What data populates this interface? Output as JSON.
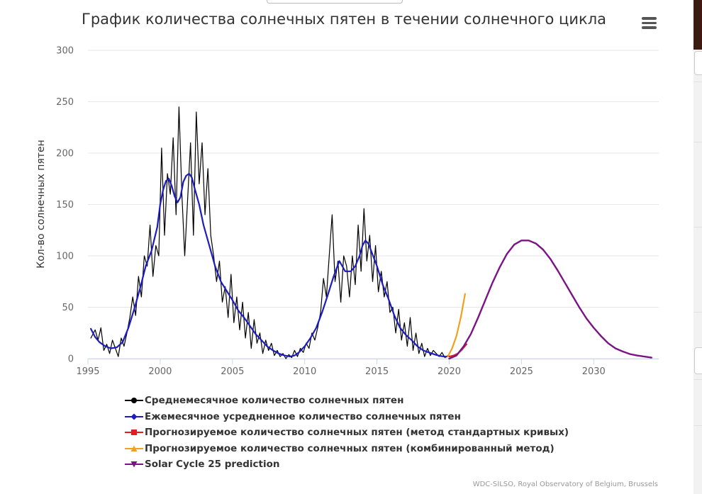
{
  "chart_data": {
    "type": "line",
    "title": "График количества солнечных пятен в течении солнечного цикла",
    "xlabel": "",
    "ylabel": "Кол-во солнечных пятен",
    "xlim": [
      1995,
      2034.5
    ],
    "ylim": [
      0,
      300
    ],
    "x_ticks": [
      1995,
      2000,
      2005,
      2010,
      2015,
      2020,
      2025,
      2030
    ],
    "y_ticks": [
      0,
      50,
      100,
      150,
      200,
      250,
      300
    ],
    "grid": "horizontal",
    "legend_position": "bottom-left",
    "series": [
      {
        "name": "Среднемесячное количество солнечных пятен",
        "color": "#000000",
        "marker": "circle",
        "points": [
          [
            1995.2,
            20
          ],
          [
            1995.5,
            28
          ],
          [
            1995.7,
            18
          ],
          [
            1995.9,
            30
          ],
          [
            1996.1,
            8
          ],
          [
            1996.3,
            14
          ],
          [
            1996.5,
            5
          ],
          [
            1996.7,
            18
          ],
          [
            1996.9,
            10
          ],
          [
            1997.1,
            2
          ],
          [
            1997.3,
            20
          ],
          [
            1997.5,
            12
          ],
          [
            1997.7,
            25
          ],
          [
            1997.9,
            40
          ],
          [
            1998.1,
            60
          ],
          [
            1998.3,
            42
          ],
          [
            1998.5,
            80
          ],
          [
            1998.7,
            60
          ],
          [
            1998.9,
            100
          ],
          [
            1999.1,
            90
          ],
          [
            1999.3,
            130
          ],
          [
            1999.5,
            80
          ],
          [
            1999.7,
            110
          ],
          [
            1999.9,
            100
          ],
          [
            2000.1,
            205
          ],
          [
            2000.3,
            120
          ],
          [
            2000.5,
            180
          ],
          [
            2000.7,
            160
          ],
          [
            2000.9,
            215
          ],
          [
            2001.1,
            140
          ],
          [
            2001.3,
            245
          ],
          [
            2001.5,
            160
          ],
          [
            2001.7,
            100
          ],
          [
            2001.9,
            155
          ],
          [
            2002.1,
            210
          ],
          [
            2002.3,
            120
          ],
          [
            2002.5,
            240
          ],
          [
            2002.7,
            170
          ],
          [
            2002.9,
            210
          ],
          [
            2003.1,
            140
          ],
          [
            2003.3,
            185
          ],
          [
            2003.5,
            120
          ],
          [
            2003.7,
            100
          ],
          [
            2003.9,
            75
          ],
          [
            2004.1,
            95
          ],
          [
            2004.3,
            55
          ],
          [
            2004.5,
            70
          ],
          [
            2004.7,
            40
          ],
          [
            2004.9,
            82
          ],
          [
            2005.1,
            35
          ],
          [
            2005.3,
            60
          ],
          [
            2005.5,
            28
          ],
          [
            2005.7,
            55
          ],
          [
            2005.9,
            20
          ],
          [
            2006.1,
            45
          ],
          [
            2006.3,
            10
          ],
          [
            2006.5,
            38
          ],
          [
            2006.7,
            15
          ],
          [
            2006.9,
            25
          ],
          [
            2007.1,
            5
          ],
          [
            2007.3,
            18
          ],
          [
            2007.5,
            8
          ],
          [
            2007.7,
            15
          ],
          [
            2007.9,
            3
          ],
          [
            2008.1,
            8
          ],
          [
            2008.3,
            2
          ],
          [
            2008.5,
            5
          ],
          [
            2008.7,
            0
          ],
          [
            2008.9,
            4
          ],
          [
            2009.1,
            1
          ],
          [
            2009.3,
            8
          ],
          [
            2009.5,
            2
          ],
          [
            2009.7,
            10
          ],
          [
            2009.9,
            6
          ],
          [
            2010.1,
            15
          ],
          [
            2010.3,
            10
          ],
          [
            2010.5,
            25
          ],
          [
            2010.7,
            18
          ],
          [
            2010.9,
            30
          ],
          [
            2011.1,
            45
          ],
          [
            2011.3,
            78
          ],
          [
            2011.5,
            60
          ],
          [
            2011.7,
            100
          ],
          [
            2011.9,
            140
          ],
          [
            2012.1,
            75
          ],
          [
            2012.3,
            95
          ],
          [
            2012.5,
            55
          ],
          [
            2012.7,
            100
          ],
          [
            2012.9,
            90
          ],
          [
            2013.1,
            60
          ],
          [
            2013.3,
            100
          ],
          [
            2013.5,
            72
          ],
          [
            2013.7,
            130
          ],
          [
            2013.9,
            85
          ],
          [
            2014.1,
            146
          ],
          [
            2014.3,
            95
          ],
          [
            2014.5,
            120
          ],
          [
            2014.7,
            75
          ],
          [
            2014.9,
            110
          ],
          [
            2015.1,
            65
          ],
          [
            2015.3,
            85
          ],
          [
            2015.5,
            60
          ],
          [
            2015.7,
            75
          ],
          [
            2015.9,
            45
          ],
          [
            2016.1,
            50
          ],
          [
            2016.3,
            25
          ],
          [
            2016.5,
            48
          ],
          [
            2016.7,
            18
          ],
          [
            2016.9,
            35
          ],
          [
            2017.1,
            12
          ],
          [
            2017.3,
            40
          ],
          [
            2017.5,
            8
          ],
          [
            2017.7,
            25
          ],
          [
            2017.9,
            5
          ],
          [
            2018.1,
            15
          ],
          [
            2018.3,
            2
          ],
          [
            2018.5,
            10
          ],
          [
            2018.7,
            3
          ],
          [
            2018.9,
            8
          ],
          [
            2019.1,
            5
          ],
          [
            2019.3,
            2
          ],
          [
            2019.5,
            6
          ],
          [
            2019.7,
            1
          ],
          [
            2019.9,
            3
          ],
          [
            2020.1,
            2
          ]
        ]
      },
      {
        "name": "Ежемесячное усредненное количество солнечных пятен",
        "color": "#1c1cc0",
        "marker": "diamond",
        "points": [
          [
            1995.2,
            29
          ],
          [
            1995.5,
            21
          ],
          [
            1995.8,
            16
          ],
          [
            1996.2,
            12
          ],
          [
            1996.6,
            10
          ],
          [
            1997.0,
            11
          ],
          [
            1997.4,
            16
          ],
          [
            1997.8,
            30
          ],
          [
            1998.2,
            48
          ],
          [
            1998.6,
            68
          ],
          [
            1999.0,
            90
          ],
          [
            1999.4,
            105
          ],
          [
            1999.8,
            128
          ],
          [
            2000.0,
            150
          ],
          [
            2000.2,
            164
          ],
          [
            2000.4,
            173
          ],
          [
            2000.6,
            175
          ],
          [
            2000.8,
            168
          ],
          [
            2001.0,
            158
          ],
          [
            2001.2,
            152
          ],
          [
            2001.4,
            157
          ],
          [
            2001.6,
            172
          ],
          [
            2001.8,
            178
          ],
          [
            2002.0,
            180
          ],
          [
            2002.2,
            176
          ],
          [
            2002.4,
            165
          ],
          [
            2002.7,
            150
          ],
          [
            2003.0,
            130
          ],
          [
            2003.4,
            110
          ],
          [
            2003.8,
            90
          ],
          [
            2004.2,
            75
          ],
          [
            2004.6,
            66
          ],
          [
            2005.0,
            57
          ],
          [
            2005.4,
            47
          ],
          [
            2005.8,
            40
          ],
          [
            2006.2,
            32
          ],
          [
            2006.6,
            24
          ],
          [
            2007.0,
            18
          ],
          [
            2007.4,
            12
          ],
          [
            2007.8,
            8
          ],
          [
            2008.2,
            5
          ],
          [
            2008.6,
            3
          ],
          [
            2009.0,
            2
          ],
          [
            2009.3,
            3
          ],
          [
            2009.6,
            6
          ],
          [
            2010.0,
            12
          ],
          [
            2010.4,
            20
          ],
          [
            2010.8,
            30
          ],
          [
            2011.2,
            45
          ],
          [
            2011.6,
            62
          ],
          [
            2012.0,
            80
          ],
          [
            2012.4,
            95
          ],
          [
            2012.6,
            90
          ],
          [
            2012.8,
            85
          ],
          [
            2013.2,
            85
          ],
          [
            2013.5,
            90
          ],
          [
            2013.8,
            100
          ],
          [
            2014.0,
            110
          ],
          [
            2014.2,
            115
          ],
          [
            2014.4,
            112
          ],
          [
            2014.6,
            105
          ],
          [
            2015.0,
            90
          ],
          [
            2015.4,
            72
          ],
          [
            2015.8,
            58
          ],
          [
            2016.2,
            42
          ],
          [
            2016.6,
            30
          ],
          [
            2017.0,
            23
          ],
          [
            2017.4,
            18
          ],
          [
            2017.8,
            12
          ],
          [
            2018.2,
            8
          ],
          [
            2018.6,
            6
          ],
          [
            2019.0,
            4
          ],
          [
            2019.4,
            2.5
          ],
          [
            2019.8,
            1.8
          ]
        ]
      },
      {
        "name": "Прогнозируемое количество солнечных пятен (метод стандартных кривых)",
        "color": "#e01e1e",
        "marker": "square",
        "points": [
          [
            2020.0,
            2
          ],
          [
            2020.3,
            3
          ],
          [
            2020.6,
            5
          ],
          [
            2020.9,
            9
          ],
          [
            2021.2,
            14
          ]
        ]
      },
      {
        "name": "Прогнозируемое количество солнечных пятен (комбинированный метод)",
        "color": "#f0a21e",
        "marker": "triangle",
        "points": [
          [
            2019.9,
            2
          ],
          [
            2020.2,
            10
          ],
          [
            2020.5,
            22
          ],
          [
            2020.8,
            40
          ],
          [
            2021.1,
            63
          ]
        ]
      },
      {
        "name": "Solar Cycle 25 prediction",
        "color": "#7b1386",
        "marker": "triangle-down",
        "points": [
          [
            2020.0,
            0
          ],
          [
            2020.5,
            3
          ],
          [
            2021.0,
            12
          ],
          [
            2021.5,
            24
          ],
          [
            2022.0,
            40
          ],
          [
            2022.5,
            57
          ],
          [
            2023.0,
            74
          ],
          [
            2023.5,
            89
          ],
          [
            2024.0,
            102
          ],
          [
            2024.5,
            111
          ],
          [
            2025.0,
            115
          ],
          [
            2025.5,
            115
          ],
          [
            2026.0,
            112
          ],
          [
            2026.5,
            106
          ],
          [
            2027.0,
            97
          ],
          [
            2027.5,
            86
          ],
          [
            2028.0,
            74
          ],
          [
            2028.5,
            62
          ],
          [
            2029.0,
            50
          ],
          [
            2029.5,
            39
          ],
          [
            2030.0,
            30
          ],
          [
            2030.5,
            22
          ],
          [
            2031.0,
            15
          ],
          [
            2031.5,
            10
          ],
          [
            2032.0,
            7
          ],
          [
            2032.5,
            4.5
          ],
          [
            2033.0,
            3
          ],
          [
            2033.5,
            2
          ],
          [
            2034.0,
            1
          ]
        ]
      }
    ],
    "credit": "WDC-SILSO, Royal Observatory of Belgium, Brussels"
  },
  "menu": {
    "icon": "hamburger-menu-icon"
  }
}
